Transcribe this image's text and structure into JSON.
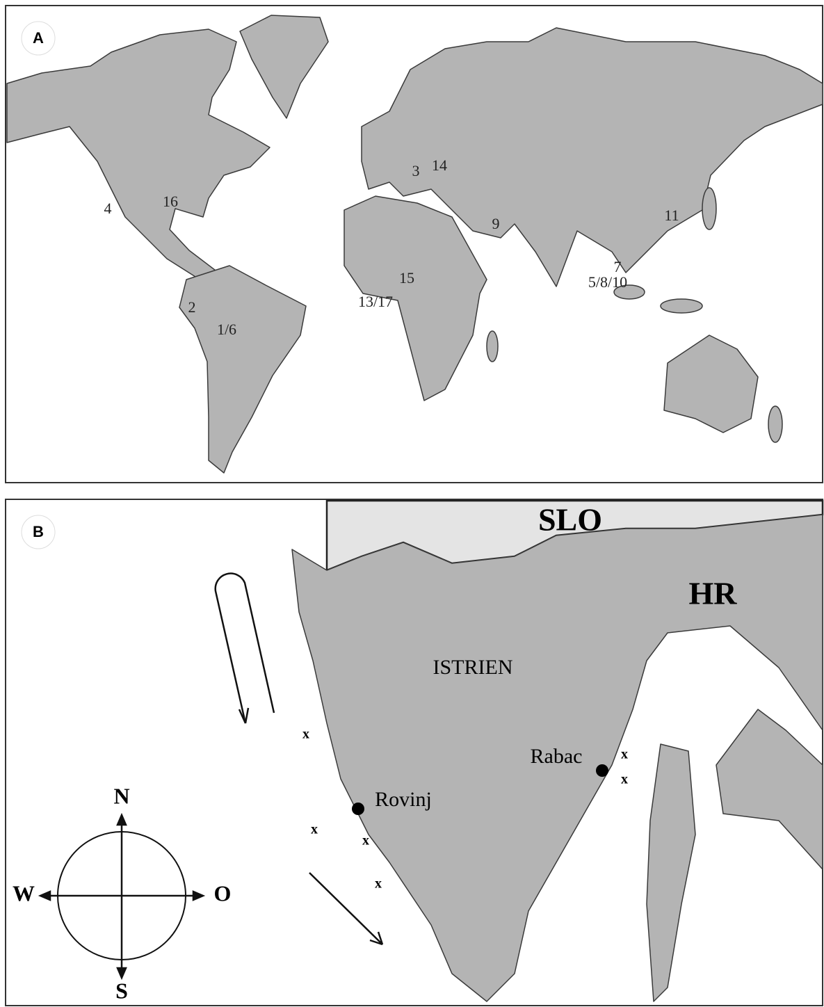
{
  "panels": [
    {
      "label": "A",
      "sites": [
        "4",
        "16",
        "2",
        "1/6",
        "3",
        "14",
        "9",
        "15",
        "13/17",
        "7",
        "5/8/10",
        "11"
      ]
    },
    {
      "label": "B",
      "regions": [
        "SLO",
        "HR",
        "ISTRIEN"
      ],
      "towns": [
        "Rovinj",
        "Rabac"
      ],
      "sample_marks": [
        "x",
        "x",
        "x",
        "x",
        "x",
        "x"
      ],
      "compass": {
        "north": "N",
        "west": "W",
        "east": "O",
        "south": "S"
      }
    }
  ]
}
